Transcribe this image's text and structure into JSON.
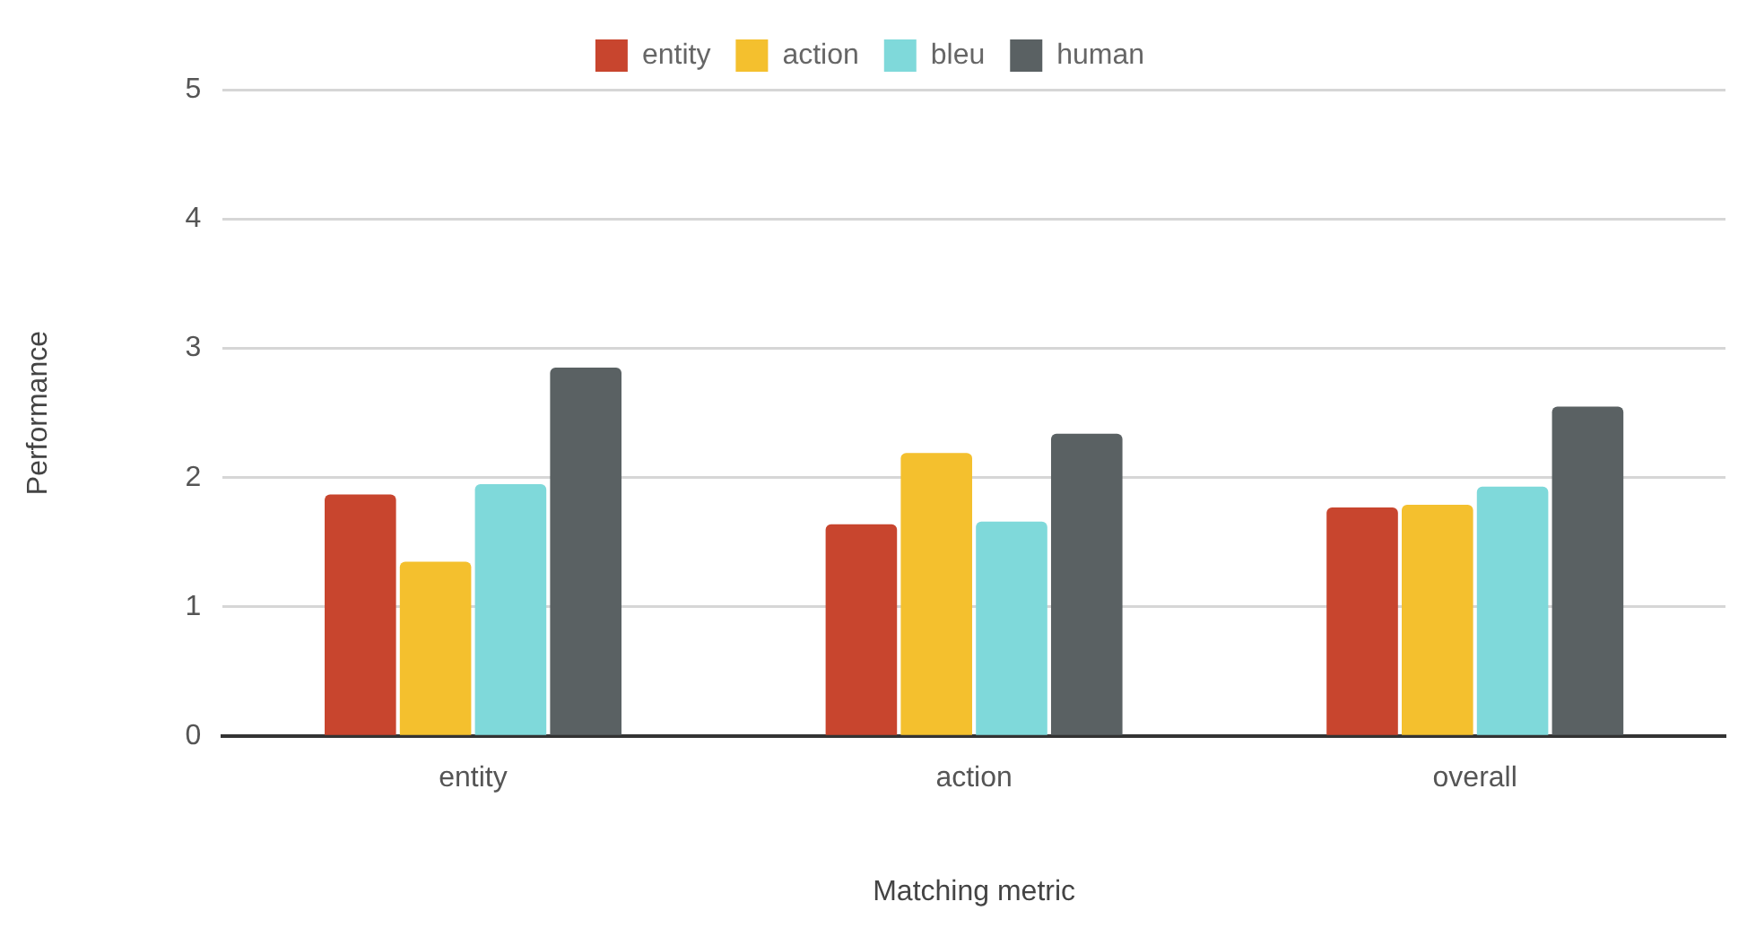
{
  "chart_data": {
    "type": "bar",
    "xlabel": "Matching metric",
    "ylabel": "Performance",
    "categories": [
      "entity",
      "action",
      "overall"
    ],
    "series": [
      {
        "name": "entity",
        "color": "#c8452e",
        "values": [
          1.87,
          1.64,
          1.77
        ]
      },
      {
        "name": "action",
        "color": "#f4c02e",
        "values": [
          1.35,
          2.19,
          1.79
        ]
      },
      {
        "name": "bleu",
        "color": "#7fd9da",
        "values": [
          1.95,
          1.66,
          1.93
        ]
      },
      {
        "name": "human",
        "color": "#5a6163",
        "values": [
          2.85,
          2.34,
          2.55
        ]
      }
    ],
    "ylim": [
      0,
      5
    ],
    "yticks": [
      0,
      1,
      2,
      3,
      4,
      5
    ],
    "grid": "y",
    "legend": "top"
  }
}
